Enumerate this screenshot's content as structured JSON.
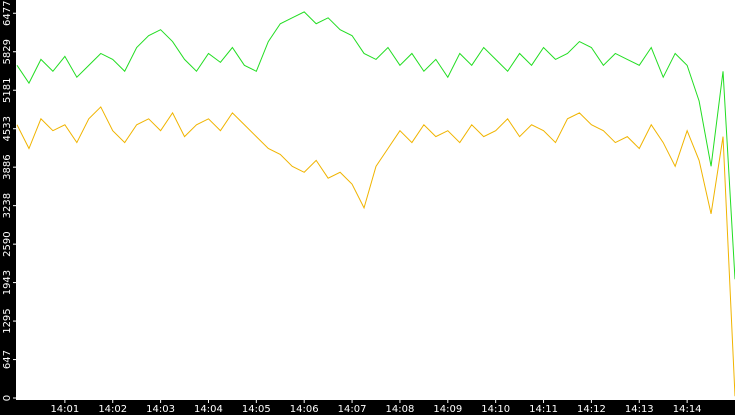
{
  "chart_data": {
    "type": "line",
    "x": [
      0,
      0.25,
      0.5,
      0.75,
      1,
      1.25,
      1.5,
      1.75,
      2,
      2.25,
      2.5,
      2.75,
      3,
      3.25,
      3.5,
      3.75,
      4,
      4.25,
      4.5,
      4.75,
      5,
      5.25,
      5.5,
      5.75,
      6,
      6.25,
      6.5,
      6.75,
      7,
      7.25,
      7.5,
      7.75,
      8,
      8.25,
      8.5,
      8.75,
      9,
      9.25,
      9.5,
      9.75,
      10,
      10.25,
      10.5,
      10.75,
      11,
      11.25,
      11.5,
      11.75,
      12,
      12.25,
      12.5,
      12.75,
      13,
      13.25,
      13.5,
      13.75,
      14,
      14.25,
      14.5,
      14.75,
      15
    ],
    "series": [
      {
        "color": "#22dd22",
        "values": [
          5600,
          5300,
          5700,
          5500,
          5750,
          5400,
          5600,
          5800,
          5700,
          5500,
          5900,
          6100,
          6200,
          6000,
          5700,
          5500,
          5800,
          5650,
          5900,
          5600,
          5500,
          6000,
          6300,
          6400,
          6500,
          6300,
          6400,
          6200,
          6100,
          5800,
          5700,
          5900,
          5600,
          5800,
          5500,
          5700,
          5400,
          5800,
          5600,
          5900,
          5700,
          5500,
          5800,
          5600,
          5900,
          5700,
          5800,
          6000,
          5900,
          5600,
          5800,
          5700,
          5600,
          5900,
          5400,
          5800,
          5600,
          5000,
          3900,
          5500,
          2000
        ]
      },
      {
        "color": "#f0b400",
        "values": [
          4600,
          4200,
          4700,
          4500,
          4600,
          4300,
          4700,
          4900,
          4500,
          4300,
          4600,
          4700,
          4500,
          4800,
          4400,
          4600,
          4700,
          4500,
          4800,
          4600,
          4400,
          4200,
          4100,
          3900,
          3800,
          4000,
          3700,
          3800,
          3600,
          3200,
          3900,
          4200,
          4500,
          4300,
          4600,
          4400,
          4500,
          4300,
          4600,
          4400,
          4500,
          4700,
          4400,
          4600,
          4500,
          4300,
          4700,
          4800,
          4600,
          4500,
          4300,
          4400,
          4200,
          4600,
          4300,
          3900,
          4500,
          4000,
          3100,
          4400,
          30
        ]
      }
    ],
    "xlim": [
      0,
      15
    ],
    "xticks": [
      {
        "value": 1,
        "label": "14:01"
      },
      {
        "value": 2,
        "label": "14:02"
      },
      {
        "value": 3,
        "label": "14:03"
      },
      {
        "value": 4,
        "label": "14:04"
      },
      {
        "value": 5,
        "label": "14:05"
      },
      {
        "value": 6,
        "label": "14:06"
      },
      {
        "value": 7,
        "label": "14:07"
      },
      {
        "value": 8,
        "label": "14:08"
      },
      {
        "value": 9,
        "label": "14:09"
      },
      {
        "value": 10,
        "label": "14:10"
      },
      {
        "value": 11,
        "label": "14:11"
      },
      {
        "value": 12,
        "label": "14:12"
      },
      {
        "value": 13,
        "label": "14:13"
      },
      {
        "value": 14,
        "label": "14:14"
      }
    ],
    "ylim": [
      0,
      6700
    ],
    "yticks": [
      0,
      647,
      1295,
      1943,
      2590,
      3238,
      3886,
      4533,
      5181,
      5829,
      6477
    ]
  }
}
